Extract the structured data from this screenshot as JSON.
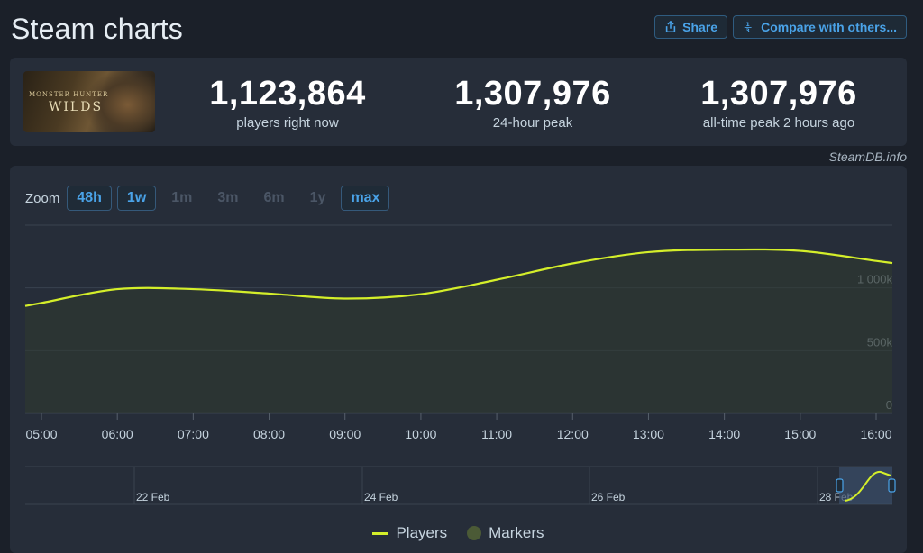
{
  "page": {
    "title": "Steam charts",
    "share_label": "Share",
    "compare_label": "Compare with others...",
    "credit": "SteamDB.info"
  },
  "game": {
    "logo_text": "MONSTER HUNTER",
    "logo_sub": "WILDS"
  },
  "stats": [
    {
      "value": "1,123,864",
      "label": "players right now"
    },
    {
      "value": "1,307,976",
      "label": "24-hour peak"
    },
    {
      "value": "1,307,976",
      "label": "all-time peak 2 hours ago"
    }
  ],
  "zoom": {
    "label": "Zoom",
    "options": [
      {
        "label": "48h",
        "active": true
      },
      {
        "label": "1w",
        "active": true
      },
      {
        "label": "1m",
        "active": false
      },
      {
        "label": "3m",
        "active": false
      },
      {
        "label": "6m",
        "active": false
      },
      {
        "label": "1y",
        "active": false
      },
      {
        "label": "max",
        "active": true
      }
    ]
  },
  "legend": {
    "players": "Players",
    "markers": "Markers"
  },
  "colors": {
    "line": "#d4ee2a",
    "accent": "#4aa3e8",
    "grid": "#39424f"
  },
  "chart_data": {
    "type": "area",
    "x": [
      "05:00",
      "06:00",
      "07:00",
      "08:00",
      "09:00",
      "10:00",
      "11:00",
      "12:00",
      "13:00",
      "14:00",
      "15:00",
      "16:00"
    ],
    "series": [
      {
        "name": "Players",
        "values": [
          880000,
          990000,
          990000,
          955000,
          915000,
          950000,
          1065000,
          1195000,
          1285000,
          1305000,
          1295000,
          1215000
        ]
      }
    ],
    "y_ticks": [
      {
        "value": 0,
        "label": "0"
      },
      {
        "value": 500000,
        "label": "500k"
      },
      {
        "value": 1000000,
        "label": "1 000k"
      }
    ],
    "ylim": [
      0,
      1500000
    ],
    "grid": true,
    "legend_position": "bottom",
    "navigator": {
      "dates": [
        "22 Feb",
        "24 Feb",
        "26 Feb",
        "28 Feb"
      ]
    }
  }
}
